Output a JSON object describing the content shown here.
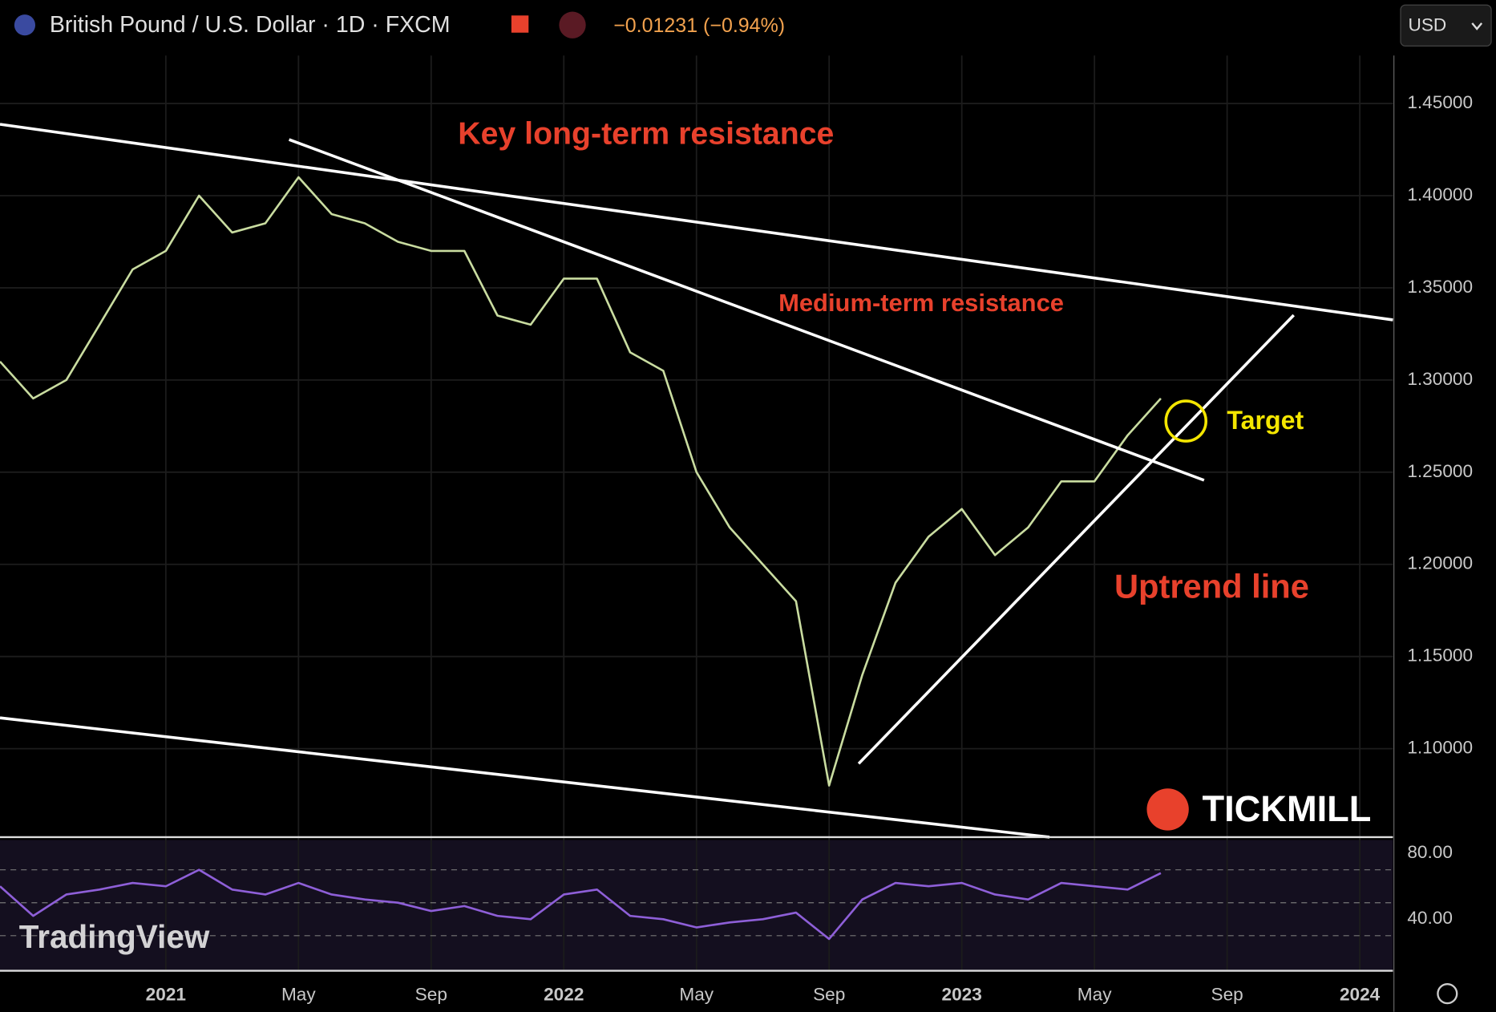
{
  "header": {
    "title": "British Pound / U.S. Dollar · 1D · FXCM",
    "change": "−0.01231 (−0.94%)",
    "currency": "USD"
  },
  "logos": [
    "TICKMILL",
    "TradingView"
  ],
  "chart_data": [
    {
      "type": "line",
      "annotations": [
        "Key long-term resistance",
        "Medium-term resistance",
        "Uptrend line",
        "Target"
      ],
      "x": [
        "2020-08",
        "2020-09",
        "2020-10",
        "2020-11",
        "2020-12",
        "2021-01",
        "2021-02",
        "2021-03",
        "2021-04",
        "2021-05",
        "2021-06",
        "2021-07",
        "2021-08",
        "2021-09",
        "2021-10",
        "2021-11",
        "2021-12",
        "2022-01",
        "2022-02",
        "2022-03",
        "2022-04",
        "2022-05",
        "2022-06",
        "2022-07",
        "2022-08",
        "2022-09",
        "2022-10",
        "2022-11",
        "2022-12",
        "2023-01",
        "2023-02",
        "2023-03",
        "2023-04",
        "2023-05",
        "2023-06",
        "2023-07"
      ],
      "values": [
        1.31,
        1.29,
        1.3,
        1.33,
        1.36,
        1.37,
        1.4,
        1.38,
        1.385,
        1.41,
        1.39,
        1.385,
        1.375,
        1.37,
        1.37,
        1.335,
        1.33,
        1.355,
        1.355,
        1.315,
        1.305,
        1.25,
        1.22,
        1.2,
        1.18,
        1.08,
        1.14,
        1.19,
        1.215,
        1.23,
        1.205,
        1.22,
        1.245,
        1.245,
        1.27,
        1.29
      ],
      "color": "#c9dca0",
      "xlim": [
        "2020-08",
        "2024-02"
      ],
      "xticks": [
        {
          "value": "2021-01",
          "label": "2021"
        },
        {
          "value": "2021-05",
          "label": "May"
        },
        {
          "value": "2021-09",
          "label": "Sep"
        },
        {
          "value": "2022-01",
          "label": "2022"
        },
        {
          "value": "2022-05",
          "label": "May"
        },
        {
          "value": "2022-09",
          "label": "Sep"
        },
        {
          "value": "2023-01",
          "label": "2023"
        },
        {
          "value": "2023-05",
          "label": "May"
        },
        {
          "value": "2023-09",
          "label": "Sep"
        },
        {
          "value": "2024-01",
          "label": "2024"
        }
      ],
      "ylim": [
        1.052,
        1.476
      ],
      "yticks": [
        {
          "value": 1.1,
          "label": "1.10000"
        },
        {
          "value": 1.15,
          "label": "1.15000"
        },
        {
          "value": 1.2,
          "label": "1.20000"
        },
        {
          "value": 1.25,
          "label": "1.25000"
        },
        {
          "value": 1.3,
          "label": "1.30000"
        },
        {
          "value": 1.35,
          "label": "1.35000"
        },
        {
          "value": 1.4,
          "label": "1.40000"
        },
        {
          "value": 1.45,
          "label": "1.45000"
        }
      ],
      "grid": true
    },
    {
      "type": "line",
      "x": [
        "2020-08",
        "2020-09",
        "2020-10",
        "2020-11",
        "2020-12",
        "2021-01",
        "2021-02",
        "2021-03",
        "2021-04",
        "2021-05",
        "2021-06",
        "2021-07",
        "2021-08",
        "2021-09",
        "2021-10",
        "2021-11",
        "2021-12",
        "2022-01",
        "2022-02",
        "2022-03",
        "2022-04",
        "2022-05",
        "2022-06",
        "2022-07",
        "2022-08",
        "2022-09",
        "2022-10",
        "2022-11",
        "2022-12",
        "2023-01",
        "2023-02",
        "2023-03",
        "2023-04",
        "2023-05",
        "2023-06",
        "2023-07"
      ],
      "values": [
        60,
        42,
        55,
        58,
        62,
        60,
        70,
        58,
        55,
        62,
        55,
        52,
        50,
        45,
        48,
        42,
        40,
        55,
        58,
        42,
        40,
        35,
        38,
        40,
        44,
        28,
        52,
        62,
        60,
        62,
        55,
        52,
        62,
        60,
        58,
        68
      ],
      "color": "#8e5fd8",
      "ylim": [
        8.7,
        88.1
      ],
      "yticks": [
        {
          "value": 40,
          "label": "40.00"
        },
        {
          "value": 80,
          "label": "80.00"
        }
      ],
      "levels": [
        30,
        50,
        70
      ]
    }
  ]
}
